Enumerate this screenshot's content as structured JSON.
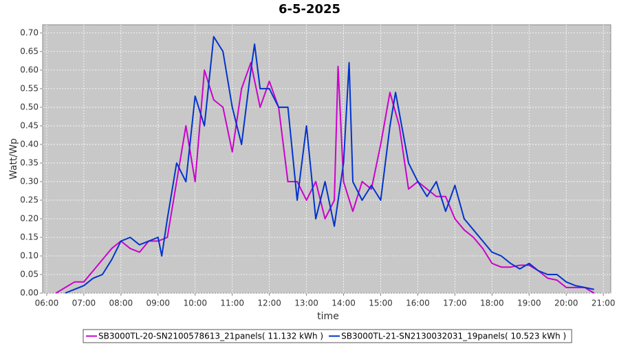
{
  "chart_data": {
    "type": "line",
    "title": "6-5-2025",
    "x_label": "time",
    "y_label": "Watt/Wp",
    "xlim": [
      5.89,
      21.2
    ],
    "ylim": [
      0,
      0.722
    ],
    "grid": true,
    "legend": "bottom",
    "xticks": [
      {
        "value": 6,
        "label": "06:00"
      },
      {
        "value": 7,
        "label": "07:00"
      },
      {
        "value": 8,
        "label": "08:00"
      },
      {
        "value": 9,
        "label": "09:00"
      },
      {
        "value": 10,
        "label": "10:00"
      },
      {
        "value": 11,
        "label": "11:00"
      },
      {
        "value": 12,
        "label": "12:00"
      },
      {
        "value": 13,
        "label": "13:00"
      },
      {
        "value": 14,
        "label": "14:00"
      },
      {
        "value": 15,
        "label": "15:00"
      },
      {
        "value": 16,
        "label": "16:00"
      },
      {
        "value": 17,
        "label": "17:00"
      },
      {
        "value": 18,
        "label": "18:00"
      },
      {
        "value": 19,
        "label": "19:00"
      },
      {
        "value": 20,
        "label": "20:00"
      },
      {
        "value": 21,
        "label": "21:00"
      }
    ],
    "yticks": [
      {
        "value": 0,
        "label": "0.00"
      },
      {
        "value": 0.05,
        "label": "0.05"
      },
      {
        "value": 0.1,
        "label": "0.10"
      },
      {
        "value": 0.15,
        "label": "0.15"
      },
      {
        "value": 0.2,
        "label": "0.20"
      },
      {
        "value": 0.25,
        "label": "0.25"
      },
      {
        "value": 0.3,
        "label": "0.30"
      },
      {
        "value": 0.35,
        "label": "0.35"
      },
      {
        "value": 0.4,
        "label": "0.40"
      },
      {
        "value": 0.45,
        "label": "0.45"
      },
      {
        "value": 0.5,
        "label": "0.50"
      },
      {
        "value": 0.55,
        "label": "0.55"
      },
      {
        "value": 0.6,
        "label": "0.60"
      },
      {
        "value": 0.65,
        "label": "0.65"
      },
      {
        "value": 0.7,
        "label": "0.70"
      }
    ],
    "series": [
      {
        "name": "SB3000TL-20-SN2100578613_21panels( 11.132 kWh )",
        "color": "#cc00cc",
        "x": [
          6.25,
          6.5,
          6.75,
          7.0,
          7.25,
          7.5,
          7.75,
          8.0,
          8.25,
          8.5,
          8.75,
          9.0,
          9.25,
          9.5,
          9.75,
          10.0,
          10.25,
          10.5,
          10.75,
          11.0,
          11.25,
          11.5,
          11.75,
          12.0,
          12.25,
          12.5,
          12.75,
          13.0,
          13.25,
          13.5,
          13.75,
          13.85,
          14.0,
          14.25,
          14.5,
          14.75,
          15.0,
          15.25,
          15.5,
          15.75,
          16.0,
          16.25,
          16.5,
          16.75,
          17.0,
          17.25,
          17.5,
          17.75,
          18.0,
          18.25,
          18.5,
          18.75,
          19.0,
          19.25,
          19.5,
          19.75,
          20.0,
          20.25,
          20.5,
          20.75
        ],
        "values": [
          0,
          0.015,
          0.03,
          0.03,
          0.06,
          0.09,
          0.12,
          0.14,
          0.12,
          0.11,
          0.14,
          0.14,
          0.15,
          0.3,
          0.45,
          0.3,
          0.6,
          0.52,
          0.5,
          0.38,
          0.55,
          0.62,
          0.5,
          0.57,
          0.5,
          0.3,
          0.3,
          0.25,
          0.3,
          0.2,
          0.25,
          0.61,
          0.3,
          0.22,
          0.3,
          0.28,
          0.4,
          0.54,
          0.45,
          0.28,
          0.3,
          0.28,
          0.26,
          0.26,
          0.2,
          0.17,
          0.15,
          0.12,
          0.08,
          0.07,
          0.07,
          0.075,
          0.075,
          0.06,
          0.04,
          0.035,
          0.015,
          0.015,
          0.015,
          0
        ]
      },
      {
        "name": "SB3000TL-21-SN2130032031_19panels( 10.523 kWh )",
        "color": "#0033cc",
        "x": [
          6.5,
          6.75,
          7.0,
          7.25,
          7.5,
          7.75,
          8.0,
          8.25,
          8.5,
          8.75,
          9.0,
          9.1,
          9.25,
          9.5,
          9.75,
          10.0,
          10.25,
          10.5,
          10.75,
          11.0,
          11.25,
          11.5,
          11.6,
          11.75,
          12.0,
          12.25,
          12.5,
          12.75,
          13.0,
          13.25,
          13.5,
          13.75,
          14.0,
          14.15,
          14.25,
          14.5,
          14.75,
          15.0,
          15.25,
          15.4,
          15.75,
          16.0,
          16.25,
          16.5,
          16.75,
          17.0,
          17.25,
          17.5,
          17.75,
          18.0,
          18.25,
          18.5,
          18.75,
          19.0,
          19.25,
          19.5,
          19.75,
          20.0,
          20.25,
          20.5,
          20.75
        ],
        "values": [
          0,
          0.01,
          0.02,
          0.04,
          0.05,
          0.09,
          0.14,
          0.15,
          0.13,
          0.14,
          0.15,
          0.1,
          0.2,
          0.35,
          0.3,
          0.53,
          0.45,
          0.69,
          0.65,
          0.5,
          0.4,
          0.6,
          0.67,
          0.55,
          0.55,
          0.5,
          0.5,
          0.25,
          0.45,
          0.2,
          0.3,
          0.18,
          0.35,
          0.62,
          0.3,
          0.25,
          0.29,
          0.25,
          0.45,
          0.54,
          0.35,
          0.3,
          0.26,
          0.3,
          0.22,
          0.29,
          0.2,
          0.17,
          0.14,
          0.11,
          0.1,
          0.08,
          0.065,
          0.08,
          0.06,
          0.05,
          0.05,
          0.03,
          0.02,
          0.015,
          0.01
        ]
      }
    ]
  }
}
